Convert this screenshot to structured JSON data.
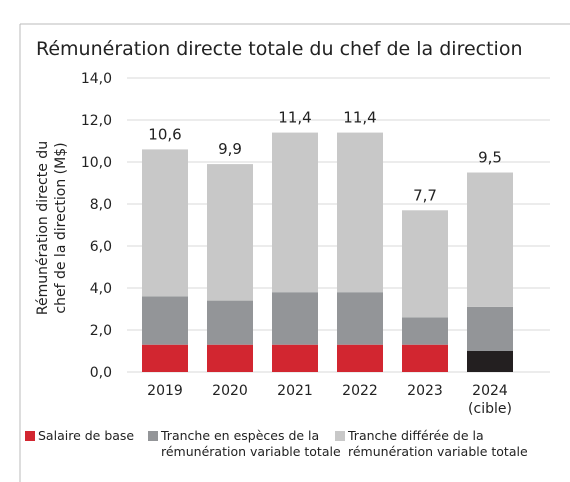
{
  "chart_data": {
    "type": "stacked_bar",
    "title": "Rémunération directe totale du chef de la direction",
    "y_label": "Rémunération directe du chef de la direction (M$)",
    "categories": [
      "2019",
      "2020",
      "2021",
      "2022",
      "2023",
      "2024 (cible)"
    ],
    "series": [
      {
        "name": "Salaire de base",
        "color": "#d22630",
        "point_colors": [
          "#d22630",
          "#d22630",
          "#d22630",
          "#d22630",
          "#d22630",
          "#231f20"
        ],
        "values": [
          1.3,
          1.3,
          1.3,
          1.3,
          1.3,
          1.0
        ]
      },
      {
        "name": "Tranche en espèces de la rémunération variable totale",
        "color": "#939598",
        "values": [
          2.3,
          2.1,
          2.5,
          2.5,
          1.3,
          2.1
        ]
      },
      {
        "name": "Tranche différée de la rémunération variable totale",
        "color": "#c8c8c8",
        "values": [
          7.0,
          6.5,
          7.6,
          7.6,
          5.1,
          6.4
        ]
      }
    ],
    "totals": [
      10.6,
      9.9,
      11.4,
      11.4,
      7.7,
      9.5
    ],
    "total_labels": [
      "10,6",
      "9,9",
      "11,4",
      "11,4",
      "7,7",
      "9,5"
    ],
    "ylim": [
      0,
      14
    ],
    "yticks": [
      {
        "value": 0,
        "label": "0,0"
      },
      {
        "value": 2,
        "label": "2,0"
      },
      {
        "value": 4,
        "label": "4,0"
      },
      {
        "value": 6,
        "label": "6,0"
      },
      {
        "value": 8,
        "label": "8,0"
      },
      {
        "value": 10,
        "label": "10,0"
      },
      {
        "value": 12,
        "label": "12,0"
      },
      {
        "value": 14,
        "label": "14,0"
      }
    ],
    "grid": true
  }
}
